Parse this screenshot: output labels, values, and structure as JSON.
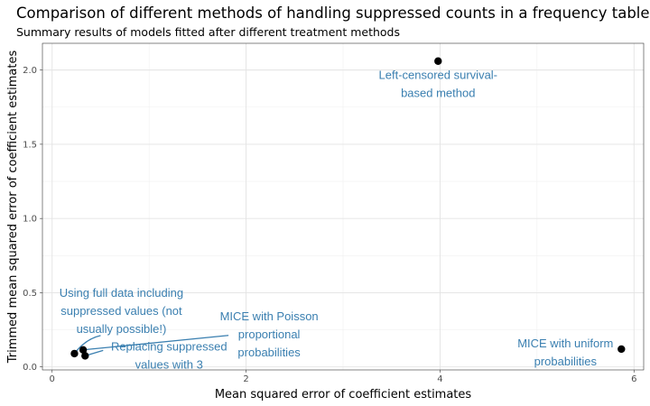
{
  "chart_data": {
    "type": "scatter",
    "title": "Comparison of different methods of handling suppressed counts in a frequency table",
    "subtitle": "Summary results of models fitted after different treatment methods",
    "xlabel": "Mean squared error of coefficient estimates",
    "ylabel": "Trimmed mean squared error of coefficient estimates",
    "xlim": [
      -0.1,
      6.1
    ],
    "ylim": [
      -0.02,
      2.18
    ],
    "x_ticks": [
      "0",
      "2",
      "4",
      "6"
    ],
    "x_tick_values": [
      0,
      2,
      4,
      6
    ],
    "y_ticks": [
      "0.0",
      "0.5",
      "1.0",
      "1.5",
      "2.0"
    ],
    "y_tick_values": [
      0,
      0.5,
      1,
      1.5,
      2
    ],
    "grid": true,
    "point_color": "#000000",
    "label_color": "#3a7fb0",
    "points": [
      {
        "x": 3.98,
        "y": 2.06,
        "label": [
          "Left-censored survival-",
          "based method"
        ]
      },
      {
        "x": 5.87,
        "y": 0.12,
        "label": [
          "MICE with uniform",
          "probabilities"
        ]
      },
      {
        "x": 0.23,
        "y": 0.09,
        "label": [
          "Using full data including",
          "suppressed values (not",
          "usually possible!)"
        ]
      },
      {
        "x": 0.32,
        "y": 0.115,
        "label": [
          "MICE with Poisson",
          "proportional",
          "probabilities"
        ]
      },
      {
        "x": 0.34,
        "y": 0.075,
        "label": [
          "Replacing suppressed",
          "values with 3"
        ]
      }
    ]
  }
}
